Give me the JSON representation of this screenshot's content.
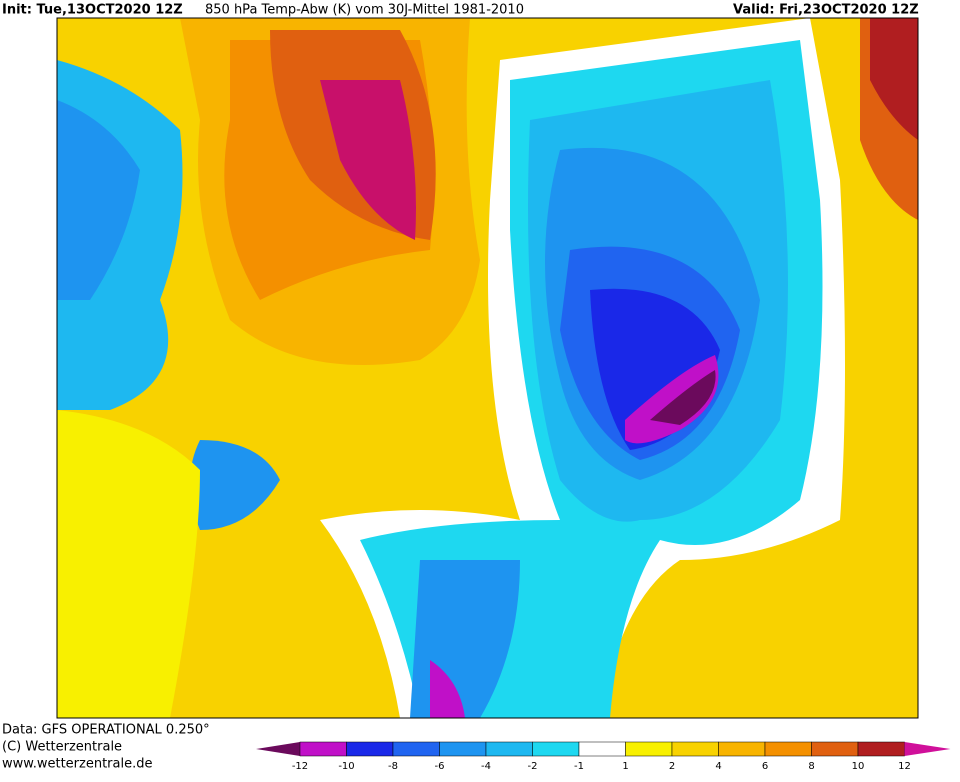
{
  "header": {
    "init": "Init: Tue,13OCT2020 12Z",
    "title": "850 hPa Temp-Abw (K) vom 30J-Mittel 1981-2010",
    "valid": "Valid: Fri,23OCT2020 12Z"
  },
  "footer": {
    "source": "Data: GFS OPERATIONAL 0.250°",
    "copyright": "(C) Wetterzentrale",
    "url": "www.wetterzentrale.de"
  },
  "colorbar": {
    "labels": [
      -12,
      -10,
      -8,
      -6,
      -4,
      -2,
      -1,
      1,
      2,
      4,
      6,
      8,
      10,
      12
    ],
    "colors": [
      "#6b0a5c",
      "#c010c8",
      "#1a28e8",
      "#2064f0",
      "#1e94f0",
      "#1eb8f0",
      "#1ed8f0",
      "#ffffff",
      "#f8f000",
      "#f8d200",
      "#f8b400",
      "#f49000",
      "#e06010",
      "#b01e20",
      "#d0109a"
    ]
  }
}
